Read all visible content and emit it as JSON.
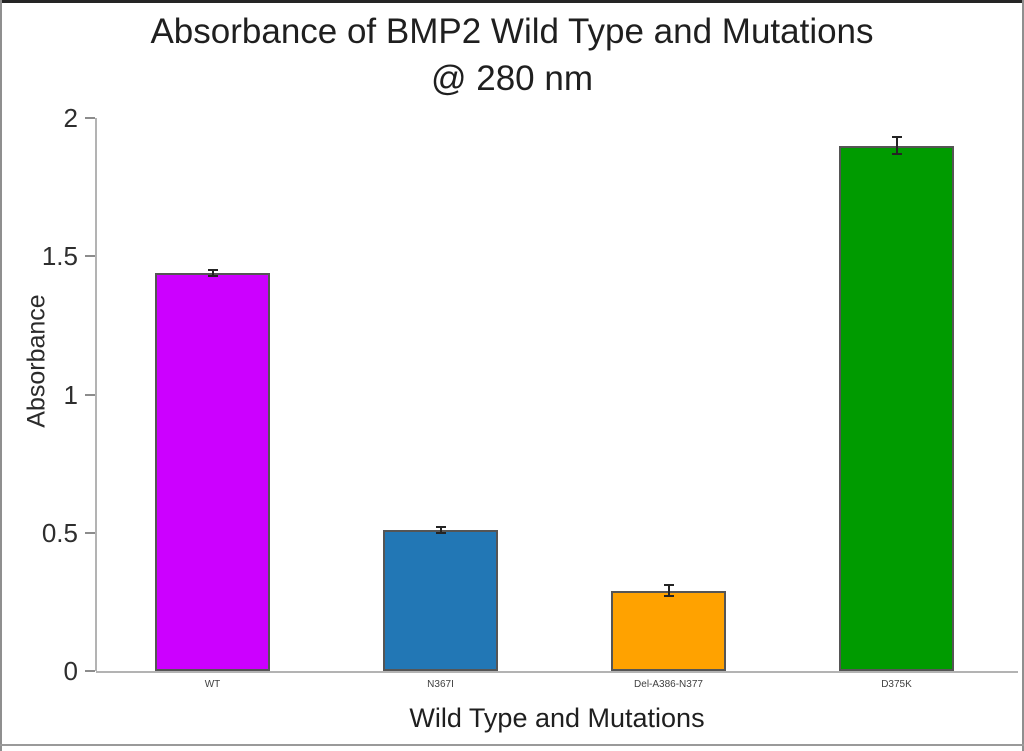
{
  "figure": {
    "title_line1": "Absorbance of BMP2 Wild Type and Mutations",
    "title_line2": "@ 280 nm"
  },
  "chart_data": {
    "type": "bar",
    "title": "Absorbance of BMP2 Wild Type and Mutations @ 280 nm",
    "xlabel": "Wild Type and Mutations",
    "ylabel": "Absorbance",
    "categories": [
      "WT",
      "N367I",
      "Del-A386-N377",
      "D375K"
    ],
    "values": [
      1.44,
      0.51,
      0.29,
      1.9
    ],
    "errors": [
      0.01,
      0.01,
      0.02,
      0.03
    ],
    "bar_colors": [
      "#CC00FF",
      "#2277B5",
      "#FFA200",
      "#009B00"
    ],
    "bar_outline_color": "#555555",
    "error_bar_color": "#242424",
    "axis_line_color": "#B3B3B3",
    "ylim": [
      0,
      2
    ],
    "yticks": [
      0,
      0.5,
      1,
      1.5,
      2
    ],
    "ytick_labels": [
      "0",
      "0.5",
      "1",
      "1.5",
      "2"
    ],
    "grid": false,
    "legend": false
  }
}
